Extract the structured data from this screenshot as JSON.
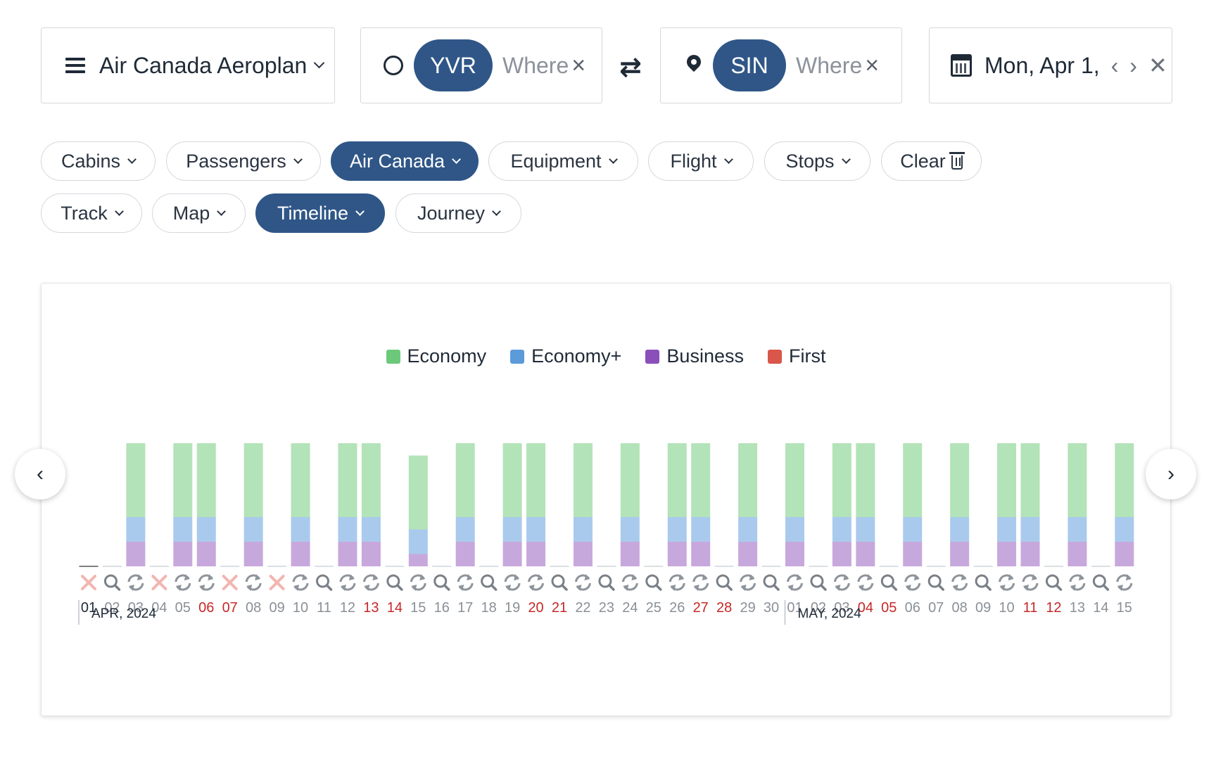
{
  "search": {
    "program": "Air Canada Aeroplan",
    "origin_code": "YVR",
    "origin_placeholder": "Where",
    "dest_code": "SIN",
    "dest_placeholder": "Where",
    "date": "Mon, Apr 1,",
    "prev": "‹",
    "next": "›",
    "clear": "✕",
    "swap": "⇄",
    "add": "+"
  },
  "filters": {
    "row1": [
      {
        "label": "Cabins",
        "active": false
      },
      {
        "label": "Passengers",
        "active": false
      },
      {
        "label": "Air Canada",
        "active": true
      },
      {
        "label": "Equipment",
        "active": false
      },
      {
        "label": "Flight",
        "active": false
      },
      {
        "label": "Stops",
        "active": false
      },
      {
        "label": "Clear",
        "active": false
      }
    ],
    "row2": [
      {
        "label": "Track",
        "active": false
      },
      {
        "label": "Map",
        "active": false
      },
      {
        "label": "Timeline",
        "active": true
      },
      {
        "label": "Journey",
        "active": false
      }
    ]
  },
  "chart_data": {
    "type": "bar",
    "stacked": true,
    "legend": [
      {
        "name": "Economy",
        "color": "#6cc97a"
      },
      {
        "name": "Economy+",
        "color": "#5b9bd9"
      },
      {
        "name": "Business",
        "color": "#8a4fb8"
      },
      {
        "name": "First",
        "color": "#d9564a"
      }
    ],
    "fill_colors": {
      "Economy": "#b3e3b8",
      "Economy+": "#a9caed",
      "Business": "#c7a8dc"
    },
    "categories": [
      "01",
      "02",
      "03",
      "04",
      "05",
      "06",
      "07",
      "08",
      "09",
      "10",
      "11",
      "12",
      "13",
      "14",
      "15",
      "16",
      "17",
      "18",
      "19",
      "20",
      "21",
      "22",
      "23",
      "24",
      "25",
      "26",
      "27",
      "28",
      "29",
      "30",
      "01",
      "02",
      "03",
      "04",
      "05",
      "06",
      "07",
      "08",
      "09",
      "10",
      "11",
      "12",
      "13",
      "14",
      "15"
    ],
    "weekend": [
      "06",
      "07",
      "13",
      "14",
      "20",
      "21",
      "27",
      "28",
      "04",
      "05",
      "11",
      "12"
    ],
    "weekend_index": [
      5,
      6,
      12,
      13,
      19,
      20,
      26,
      27,
      33,
      34,
      40,
      41
    ],
    "status": [
      "x",
      "search",
      "refresh",
      "x",
      "refresh",
      "refresh",
      "x",
      "refresh",
      "x",
      "refresh",
      "search",
      "refresh",
      "refresh",
      "search",
      "refresh",
      "search",
      "refresh",
      "search",
      "refresh",
      "refresh",
      "search",
      "refresh",
      "search",
      "refresh",
      "search",
      "refresh",
      "refresh",
      "search",
      "refresh",
      "search",
      "refresh",
      "search",
      "refresh",
      "refresh",
      "search",
      "refresh",
      "search",
      "refresh",
      "search",
      "refresh",
      "refresh",
      "search",
      "refresh",
      "search",
      "refresh"
    ],
    "series": [
      {
        "name": "Business",
        "values": [
          0,
          0,
          1,
          0,
          1,
          1,
          0,
          1,
          0,
          1,
          0,
          1,
          1,
          0,
          0.5,
          0,
          1,
          0,
          1,
          1,
          0,
          1,
          0,
          1,
          0,
          1,
          1,
          0,
          1,
          0,
          1,
          0,
          1,
          1,
          0,
          1,
          0,
          1,
          0,
          1,
          1,
          0,
          1,
          0,
          1
        ]
      },
      {
        "name": "Economy+",
        "values": [
          0,
          0,
          1,
          0,
          1,
          1,
          0,
          1,
          0,
          1,
          0,
          1,
          1,
          0,
          1,
          0,
          1,
          0,
          1,
          1,
          0,
          1,
          0,
          1,
          0,
          1,
          1,
          0,
          1,
          0,
          1,
          0,
          1,
          1,
          0,
          1,
          0,
          1,
          0,
          1,
          1,
          0,
          1,
          0,
          1
        ]
      },
      {
        "name": "Economy",
        "values": [
          0,
          0,
          3,
          0,
          3,
          3,
          0,
          3,
          0,
          3,
          0,
          3,
          3,
          0,
          3,
          0,
          3,
          0,
          3,
          3,
          0,
          3,
          0,
          3,
          0,
          3,
          3,
          0,
          3,
          0,
          3,
          0,
          3,
          3,
          0,
          3,
          0,
          3,
          0,
          3,
          3,
          0,
          3,
          0,
          3
        ]
      }
    ],
    "months": [
      {
        "label": "APR, 2024",
        "start_index": 0
      },
      {
        "label": "MAY, 2024",
        "start_index": 30
      }
    ]
  },
  "nav": {
    "prev": "‹",
    "next": "›"
  }
}
